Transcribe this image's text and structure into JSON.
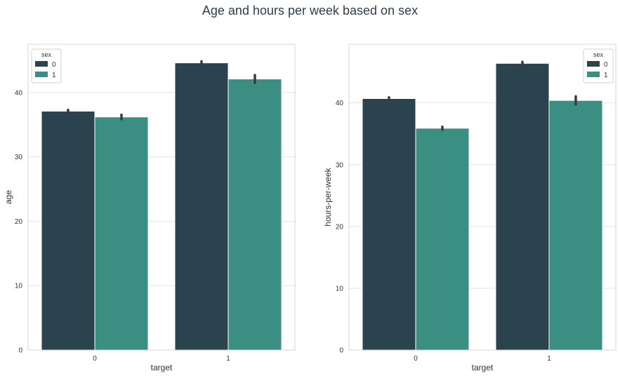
{
  "title": "Age and hours per week based on sex",
  "chart_data": [
    {
      "type": "bar",
      "xlabel": "target",
      "ylabel": "age",
      "categories": [
        "0",
        "1"
      ],
      "ylim": [
        0,
        47.5
      ],
      "yticks": [
        0,
        10,
        20,
        30,
        40
      ],
      "grid": true,
      "legend": {
        "title": "sex",
        "position": "top-left"
      },
      "series": [
        {
          "name": "0",
          "color": "#2b434f",
          "values": [
            37.1,
            44.6
          ],
          "err": [
            0.2,
            0.25
          ]
        },
        {
          "name": "1",
          "color": "#3a8f82",
          "values": [
            36.2,
            42.1
          ],
          "err": [
            0.35,
            0.6
          ]
        }
      ]
    },
    {
      "type": "bar",
      "xlabel": "target",
      "ylabel": "hours-per-week",
      "categories": [
        "0",
        "1"
      ],
      "ylim": [
        0,
        49.5
      ],
      "yticks": [
        0,
        10,
        20,
        30,
        40
      ],
      "grid": true,
      "legend": {
        "title": "sex",
        "position": "top-right"
      },
      "series": [
        {
          "name": "0",
          "color": "#2b434f",
          "values": [
            40.7,
            46.4
          ],
          "err": [
            0.2,
            0.25
          ]
        },
        {
          "name": "1",
          "color": "#3a8f82",
          "values": [
            35.9,
            40.4
          ],
          "err": [
            0.25,
            0.65
          ]
        }
      ]
    }
  ]
}
